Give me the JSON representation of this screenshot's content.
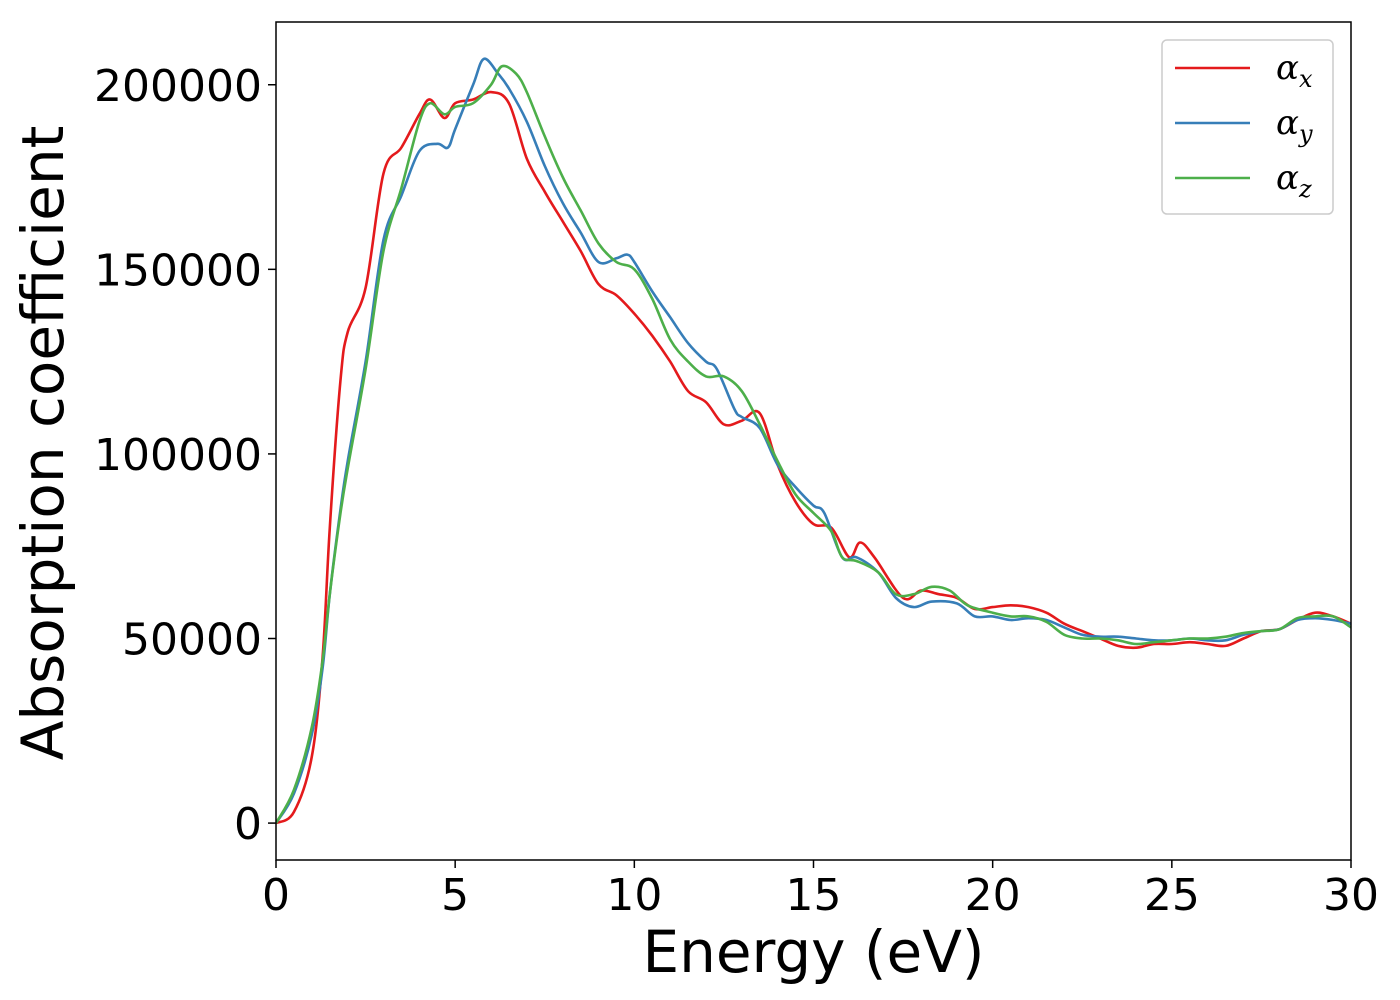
{
  "chart_data": {
    "type": "line",
    "title": "",
    "xlabel": "Energy (eV)",
    "ylabel": "Absorption coefficient",
    "xlim": [
      0,
      30
    ],
    "ylim": [
      -10000,
      217000
    ],
    "xticks": [
      0,
      5,
      10,
      15,
      20,
      25,
      30
    ],
    "xtick_labels": [
      "0",
      "5",
      "10",
      "15",
      "20",
      "25",
      "30"
    ],
    "yticks": [
      0,
      50000,
      100000,
      150000,
      200000
    ],
    "ytick_labels": [
      "0",
      "50000",
      "100000",
      "150000",
      "200000"
    ],
    "grid": false,
    "legend_position": "top-right",
    "series": [
      {
        "name": "α_x",
        "name_base": "α",
        "name_sub": "x",
        "color": "#e41a1c",
        "points": [
          [
            0,
            0
          ],
          [
            0.5,
            3000
          ],
          [
            1,
            18000
          ],
          [
            1.3,
            45000
          ],
          [
            1.5,
            80000
          ],
          [
            1.8,
            120000
          ],
          [
            2,
            133000
          ],
          [
            2.5,
            145000
          ],
          [
            3,
            176000
          ],
          [
            3.5,
            183000
          ],
          [
            4,
            192000
          ],
          [
            4.3,
            196000
          ],
          [
            4.7,
            191000
          ],
          [
            5,
            195000
          ],
          [
            5.5,
            196000
          ],
          [
            6,
            198000
          ],
          [
            6.5,
            195000
          ],
          [
            7,
            180000
          ],
          [
            7.5,
            171000
          ],
          [
            8,
            163000
          ],
          [
            8.5,
            155000
          ],
          [
            9,
            146000
          ],
          [
            9.5,
            143000
          ],
          [
            10,
            138000
          ],
          [
            10.5,
            132000
          ],
          [
            11,
            125000
          ],
          [
            11.5,
            117000
          ],
          [
            12,
            114000
          ],
          [
            12.5,
            108000
          ],
          [
            13,
            109000
          ],
          [
            13.5,
            111000
          ],
          [
            14,
            97000
          ],
          [
            14.5,
            87000
          ],
          [
            15,
            81000
          ],
          [
            15.5,
            80000
          ],
          [
            16,
            72000
          ],
          [
            16.3,
            76000
          ],
          [
            16.7,
            72000
          ],
          [
            17.5,
            61000
          ],
          [
            18,
            63000
          ],
          [
            18.5,
            62000
          ],
          [
            19,
            61000
          ],
          [
            19.5,
            58000
          ],
          [
            20,
            58500
          ],
          [
            20.5,
            59000
          ],
          [
            21,
            58500
          ],
          [
            21.5,
            57000
          ],
          [
            22,
            54000
          ],
          [
            22.5,
            52000
          ],
          [
            23,
            50000
          ],
          [
            23.5,
            48000
          ],
          [
            24,
            47500
          ],
          [
            24.5,
            48500
          ],
          [
            25,
            48500
          ],
          [
            25.5,
            49000
          ],
          [
            26,
            48500
          ],
          [
            26.5,
            48000
          ],
          [
            27,
            50000
          ],
          [
            27.5,
            52000
          ],
          [
            28,
            52500
          ],
          [
            28.5,
            55000
          ],
          [
            29,
            57000
          ],
          [
            29.5,
            56000
          ],
          [
            30,
            54000
          ]
        ]
      },
      {
        "name": "α_y",
        "name_base": "α",
        "name_sub": "y",
        "color": "#377eb8",
        "points": [
          [
            0,
            0
          ],
          [
            0.5,
            8000
          ],
          [
            1,
            24000
          ],
          [
            1.3,
            42000
          ],
          [
            1.5,
            62000
          ],
          [
            1.8,
            85000
          ],
          [
            2,
            98000
          ],
          [
            2.5,
            125000
          ],
          [
            3,
            158000
          ],
          [
            3.5,
            170000
          ],
          [
            4,
            182000
          ],
          [
            4.5,
            184000
          ],
          [
            4.8,
            183000
          ],
          [
            5,
            188000
          ],
          [
            5.5,
            200000
          ],
          [
            5.8,
            207000
          ],
          [
            6.2,
            203000
          ],
          [
            6.5,
            199000
          ],
          [
            7,
            190000
          ],
          [
            7.5,
            178000
          ],
          [
            8,
            168000
          ],
          [
            8.5,
            160000
          ],
          [
            9,
            152000
          ],
          [
            9.5,
            153000
          ],
          [
            9.8,
            154000
          ],
          [
            10,
            152000
          ],
          [
            10.5,
            144000
          ],
          [
            11,
            137000
          ],
          [
            11.5,
            130000
          ],
          [
            12,
            125000
          ],
          [
            12.3,
            123000
          ],
          [
            12.8,
            112000
          ],
          [
            13,
            110000
          ],
          [
            13.5,
            107000
          ],
          [
            14,
            97000
          ],
          [
            14.5,
            91000
          ],
          [
            15,
            86000
          ],
          [
            15.3,
            84000
          ],
          [
            15.8,
            72000
          ],
          [
            16.2,
            72000
          ],
          [
            16.8,
            68000
          ],
          [
            17.3,
            61000
          ],
          [
            17.8,
            58500
          ],
          [
            18.3,
            60000
          ],
          [
            19,
            59500
          ],
          [
            19.5,
            56000
          ],
          [
            20,
            56000
          ],
          [
            20.5,
            55000
          ],
          [
            21,
            55500
          ],
          [
            21.5,
            55000
          ],
          [
            22,
            53000
          ],
          [
            22.5,
            51000
          ],
          [
            23,
            50500
          ],
          [
            23.5,
            50500
          ],
          [
            24,
            50000
          ],
          [
            24.5,
            49500
          ],
          [
            25,
            49500
          ],
          [
            25.5,
            50000
          ],
          [
            26,
            49500
          ],
          [
            26.5,
            49500
          ],
          [
            27,
            51000
          ],
          [
            27.5,
            52000
          ],
          [
            28,
            52500
          ],
          [
            28.5,
            55000
          ],
          [
            29,
            55500
          ],
          [
            29.5,
            55000
          ],
          [
            30,
            54000
          ]
        ]
      },
      {
        "name": "α_z",
        "name_base": "α",
        "name_sub": "z",
        "color": "#4daf4a",
        "points": [
          [
            0,
            0
          ],
          [
            0.5,
            9000
          ],
          [
            1,
            26000
          ],
          [
            1.3,
            44000
          ],
          [
            1.5,
            62000
          ],
          [
            1.8,
            84000
          ],
          [
            2,
            96000
          ],
          [
            2.5,
            123000
          ],
          [
            3,
            155000
          ],
          [
            3.5,
            172000
          ],
          [
            4,
            190000
          ],
          [
            4.3,
            195000
          ],
          [
            4.7,
            192000
          ],
          [
            5,
            194000
          ],
          [
            5.5,
            195000
          ],
          [
            6,
            200000
          ],
          [
            6.3,
            205000
          ],
          [
            6.7,
            203000
          ],
          [
            7,
            198000
          ],
          [
            7.5,
            186000
          ],
          [
            8,
            175000
          ],
          [
            8.5,
            166000
          ],
          [
            9,
            157000
          ],
          [
            9.5,
            152000
          ],
          [
            10,
            150000
          ],
          [
            10.5,
            142000
          ],
          [
            11,
            131000
          ],
          [
            11.5,
            125000
          ],
          [
            12,
            121000
          ],
          [
            12.5,
            121000
          ],
          [
            13,
            117000
          ],
          [
            13.5,
            108000
          ],
          [
            14,
            98000
          ],
          [
            14.5,
            89000
          ],
          [
            15,
            84000
          ],
          [
            15.5,
            79000
          ],
          [
            15.8,
            72000
          ],
          [
            16.2,
            71000
          ],
          [
            16.8,
            68000
          ],
          [
            17.3,
            62000
          ],
          [
            17.8,
            62000
          ],
          [
            18.3,
            64000
          ],
          [
            18.8,
            63000
          ],
          [
            19.3,
            59000
          ],
          [
            20,
            57000
          ],
          [
            20.5,
            56000
          ],
          [
            21,
            56000
          ],
          [
            21.5,
            54500
          ],
          [
            22,
            51000
          ],
          [
            22.5,
            50000
          ],
          [
            23,
            50000
          ],
          [
            23.5,
            49500
          ],
          [
            24,
            48500
          ],
          [
            24.5,
            49000
          ],
          [
            25,
            49500
          ],
          [
            25.5,
            50000
          ],
          [
            26,
            50000
          ],
          [
            26.5,
            50500
          ],
          [
            27,
            51500
          ],
          [
            27.5,
            52000
          ],
          [
            28,
            52500
          ],
          [
            28.5,
            55500
          ],
          [
            29,
            56000
          ],
          [
            29.5,
            56000
          ],
          [
            30,
            53000
          ]
        ]
      }
    ]
  }
}
